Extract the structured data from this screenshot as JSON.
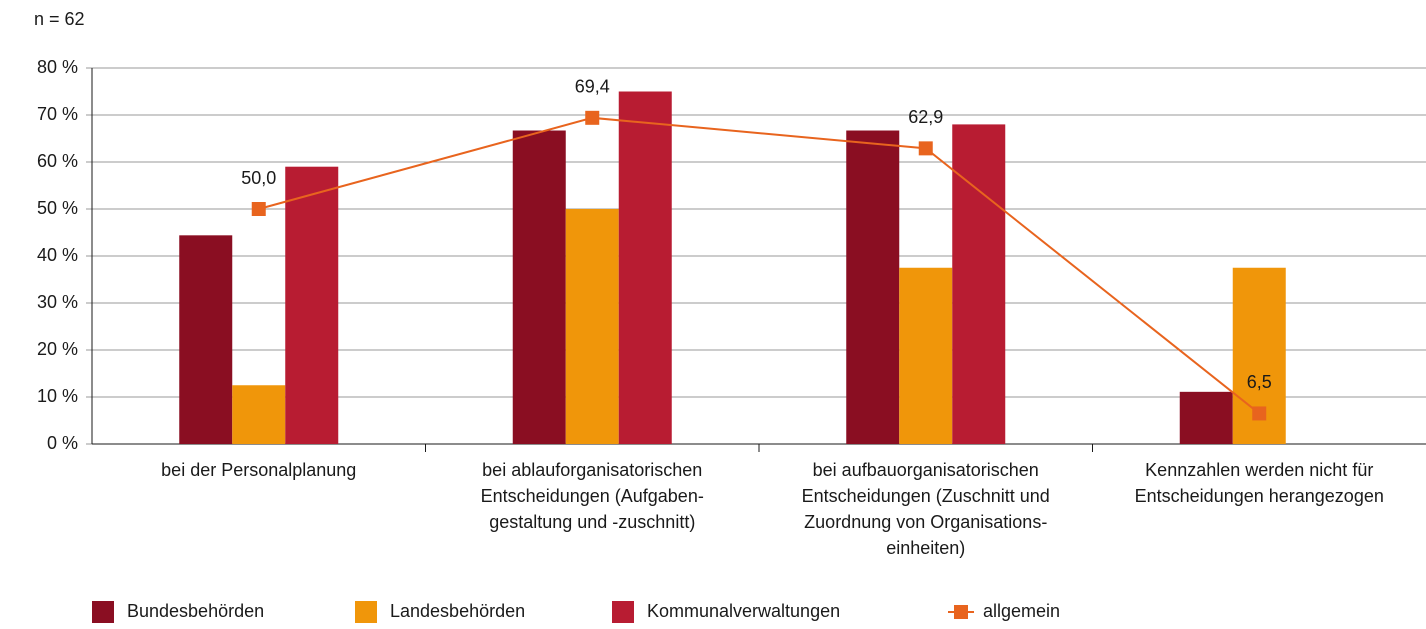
{
  "chart_data": {
    "type": "bar",
    "annotation": "n = 62",
    "categories": [
      "bei der Personalplanung",
      "bei ablauforganisatorischen\nEntscheidungen (Aufgaben-\ngestaltung und -zuschnitt)",
      "bei aufbauorganisatorischen\nEntscheidungen (Zuschnitt und\nZuordnung von Organisations-\neinheiten)",
      "Kennzahlen werden nicht für\nEntscheidungen herangezogen"
    ],
    "series": [
      {
        "name": "Bundesbehörden",
        "color": "#8a0e22",
        "values": [
          44.4,
          66.7,
          66.7,
          11.1
        ]
      },
      {
        "name": "Landesbehörden",
        "color": "#f0960a",
        "values": [
          12.5,
          50.0,
          37.5,
          37.5
        ]
      },
      {
        "name": "Kommunalverwaltungen",
        "color": "#b81c32",
        "values": [
          59.0,
          75.0,
          68.0,
          0
        ]
      },
      {
        "name": "allgemein",
        "type": "line",
        "color": "#e8641e",
        "values": [
          50.0,
          69.4,
          62.9,
          6.5
        ],
        "value_labels": [
          "50,0",
          "69,4",
          "62,9",
          "6,5"
        ]
      }
    ],
    "ylim": [
      0,
      80
    ],
    "yticks": [
      {
        "value": 0,
        "label": "0 %"
      },
      {
        "value": 10,
        "label": "10 %"
      },
      {
        "value": 20,
        "label": "20 %"
      },
      {
        "value": 30,
        "label": "30 %"
      },
      {
        "value": 40,
        "label": "40 %"
      },
      {
        "value": 50,
        "label": "50 %"
      },
      {
        "value": 60,
        "label": "60 %"
      },
      {
        "value": 70,
        "label": "70 %"
      },
      {
        "value": 80,
        "label": "80 %"
      }
    ],
    "grid": true,
    "legend": "bottom"
  }
}
